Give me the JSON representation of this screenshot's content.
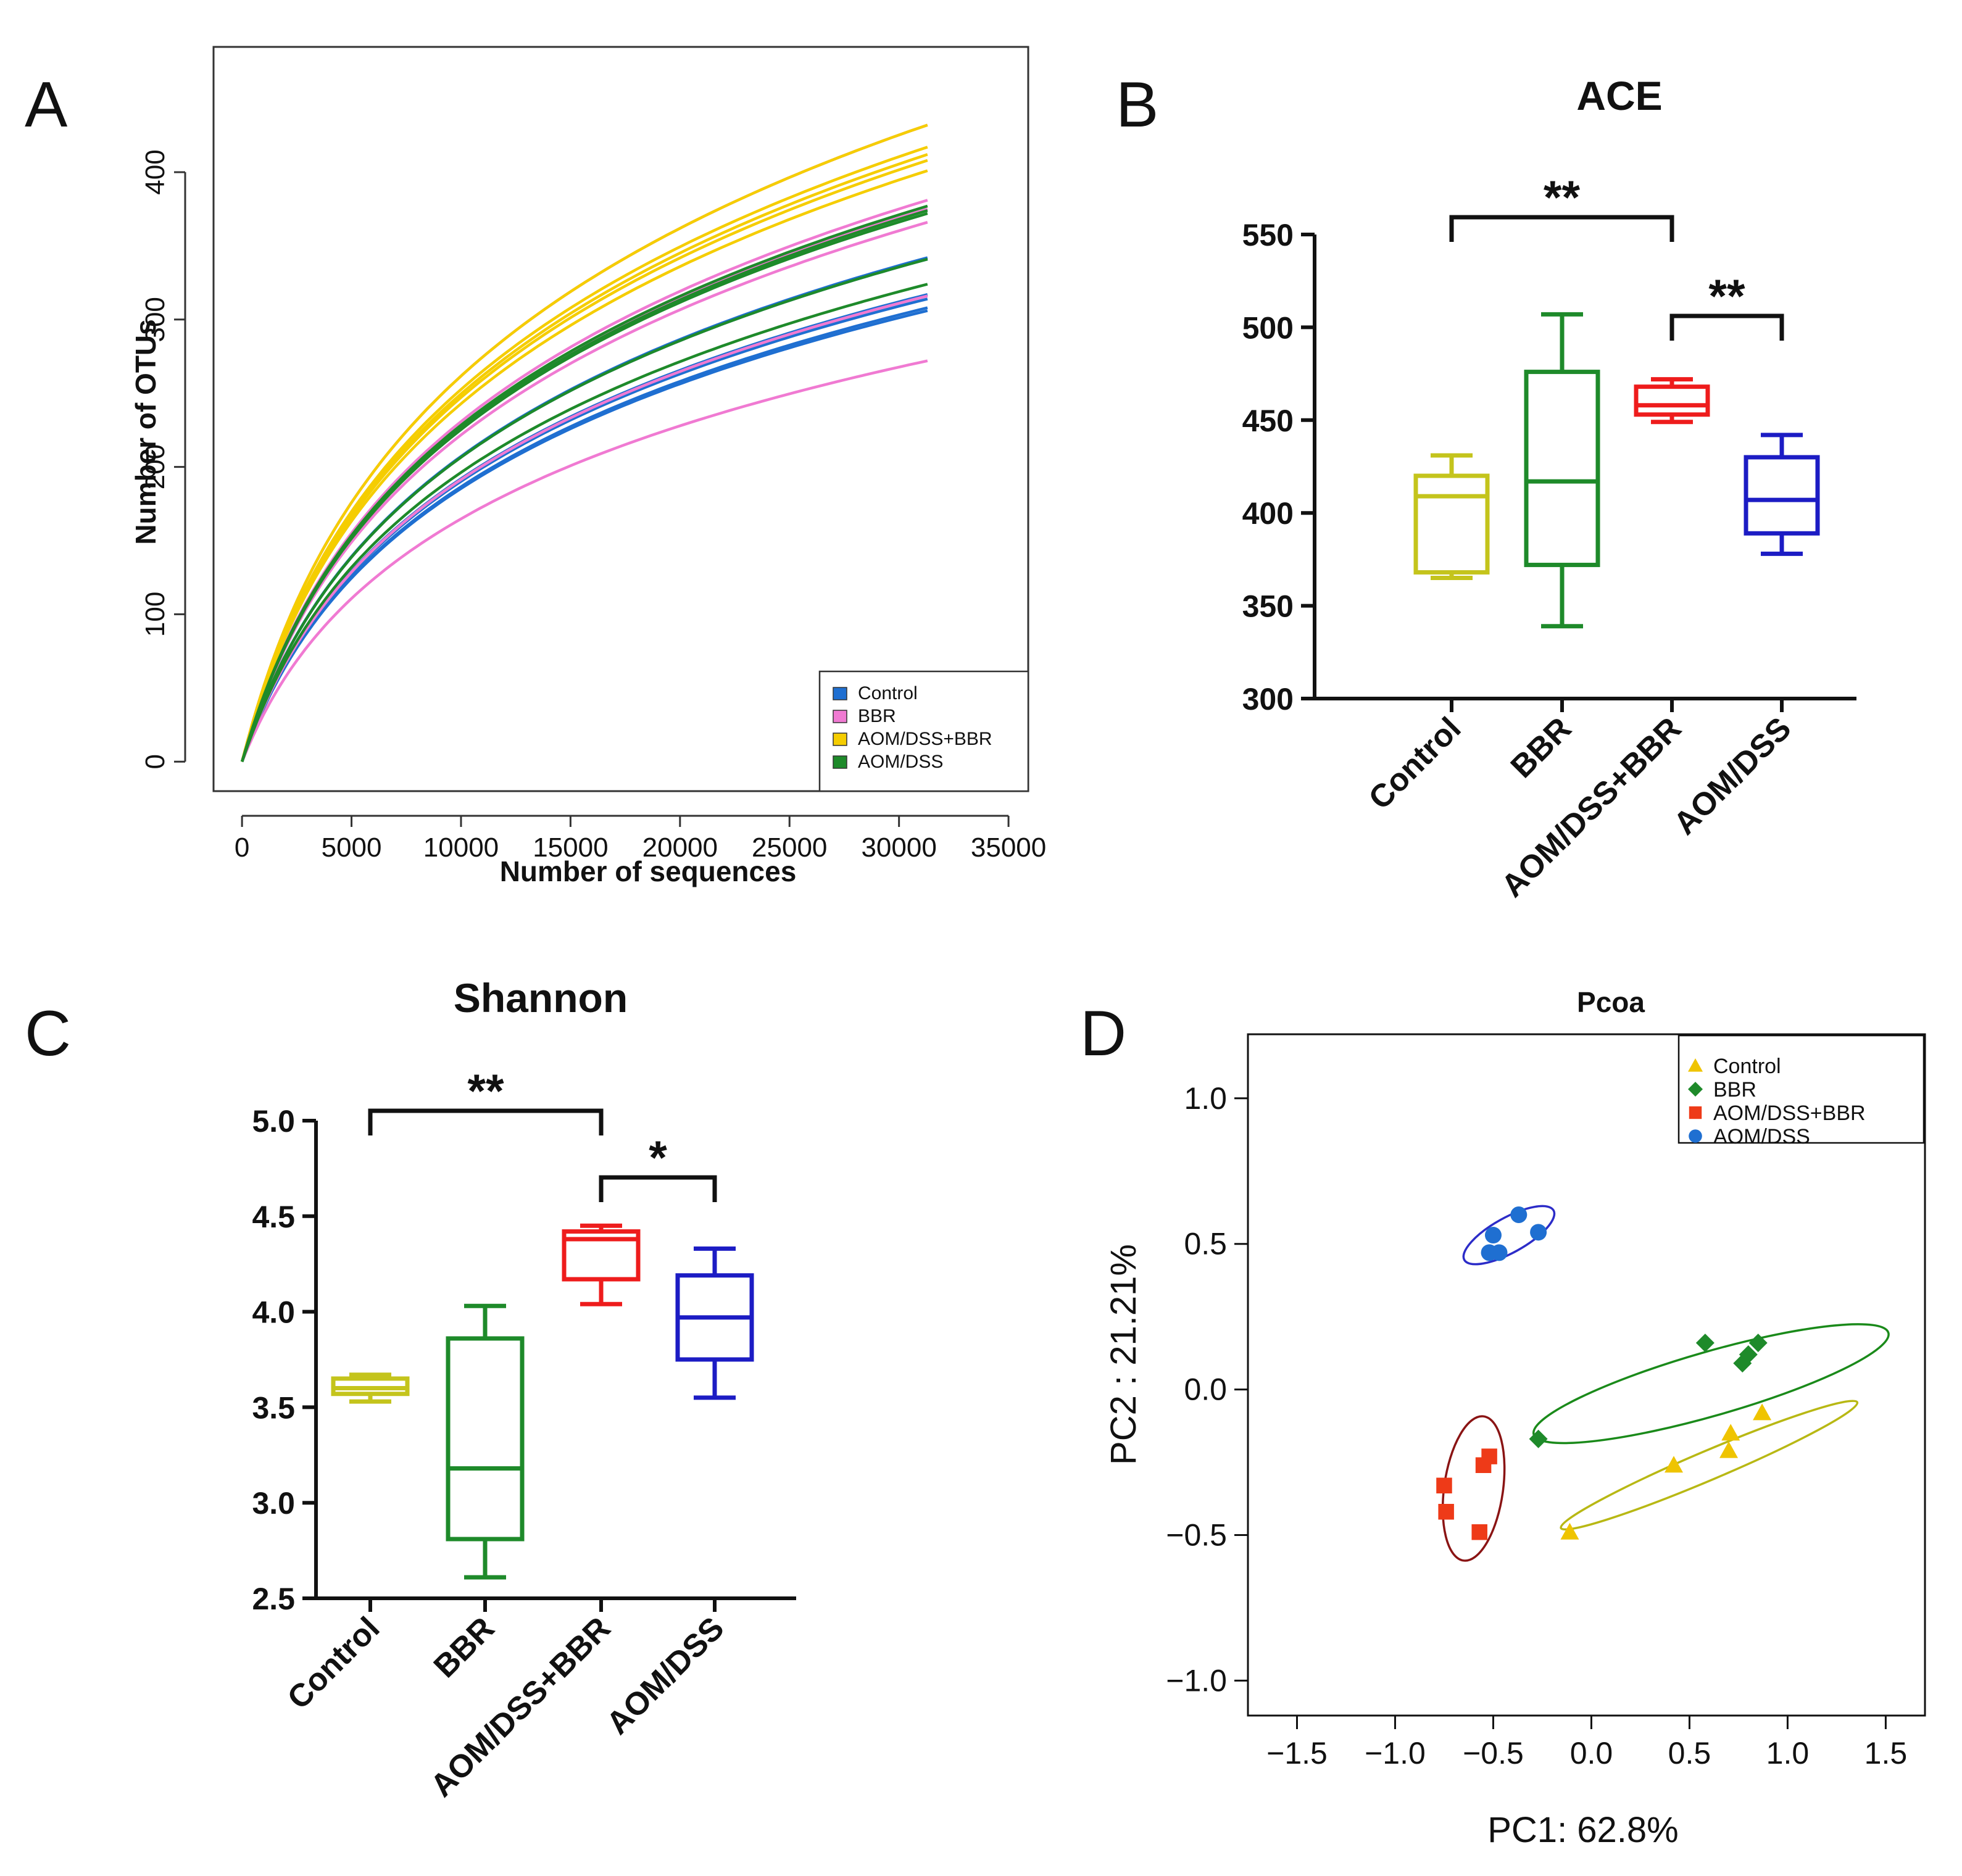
{
  "colors": {
    "control_rare": "#1f6fd1",
    "bbr_rare": "#f07ad2",
    "aombbr_rare": "#f5cd00",
    "aom_rare": "#1e8a2a",
    "control_box": "#c4c41c",
    "bbr_box": "#1e8a2a",
    "aombbr_box": "#ee1c1c",
    "aom_box": "#1c1cc4",
    "pcoa_control": "#efc400",
    "pcoa_bbr": "#1e8a2a",
    "pcoa_aombbr": "#ee3a18",
    "pcoa_aom": "#1f6fd1",
    "ellipse_control": "#b8b814",
    "ellipse_bbr": "#1a8a1a",
    "ellipse_aombbr": "#8a1414",
    "ellipse_aom": "#2c2cc8"
  },
  "chart_data": [
    {
      "panel": "A",
      "type": "line",
      "title": "",
      "xlabel": "Number of sequences",
      "ylabel": "Number of OTUs",
      "xlim": [
        -1300,
        35900
      ],
      "ylim": [
        -20,
        485
      ],
      "xticks": [
        "0",
        "5000",
        "10000",
        "15000",
        "20000",
        "25000",
        "30000",
        "35000"
      ],
      "yticks": [
        "0",
        "100",
        "200",
        "300",
        "400"
      ],
      "legend_position": "bottom-right",
      "legend": [
        "Control",
        "BBR",
        "AOM/DSS+BBR",
        "AOM/DSS"
      ],
      "x_end": 31300,
      "series": [
        {
          "name": "Control",
          "color_key": "control_rare",
          "final_values": [
            342,
            341,
            317,
            314,
            308,
            306
          ]
        },
        {
          "name": "BBR",
          "color_key": "bbr_rare",
          "final_values": [
            432,
            381,
            375,
            366,
            316,
            272
          ]
        },
        {
          "name": "AOM/DSS+BBR",
          "color_key": "aombbr_rare",
          "final_values": [
            432,
            417,
            412,
            408,
            401
          ]
        },
        {
          "name": "AOM/DSS",
          "color_key": "aom_rare",
          "final_values": [
            377,
            374,
            372,
            341,
            324
          ]
        }
      ]
    },
    {
      "panel": "B",
      "type": "box",
      "title": "ACE",
      "categories": [
        "Control",
        "BBR",
        "AOM/DSS+BBR",
        "AOM/DSS"
      ],
      "ylim": [
        300,
        550
      ],
      "yticks": [
        "300",
        "350",
        "400",
        "450",
        "500",
        "550"
      ],
      "boxes": [
        {
          "name": "Control",
          "color_key": "control_box",
          "min": 365,
          "q1": 368,
          "median": 409,
          "q3": 420,
          "max": 431
        },
        {
          "name": "BBR",
          "color_key": "bbr_box",
          "min": 339,
          "q1": 372,
          "median": 417,
          "q3": 476,
          "max": 507
        },
        {
          "name": "AOM/DSS+BBR",
          "color_key": "aombbr_box",
          "min": 449,
          "q1": 453,
          "median": 458,
          "q3": 468,
          "max": 472
        },
        {
          "name": "AOM/DSS",
          "color_key": "aom_box",
          "min": 378,
          "q1": 389,
          "median": 407,
          "q3": 430,
          "max": 442
        }
      ],
      "significance": [
        {
          "from": "Control",
          "to": "AOM/DSS+BBR",
          "label": "**"
        },
        {
          "from": "AOM/DSS+BBR",
          "to": "AOM/DSS",
          "label": "**"
        }
      ]
    },
    {
      "panel": "C",
      "type": "box",
      "title": "Shannon",
      "categories": [
        "Control",
        "BBR",
        "AOM/DSS+BBR",
        "AOM/DSS"
      ],
      "ylim": [
        2.5,
        5.0
      ],
      "yticks": [
        "2.5",
        "3.0",
        "3.5",
        "4.0",
        "4.5",
        "5.0"
      ],
      "boxes": [
        {
          "name": "Control",
          "color_key": "control_box",
          "min": 3.53,
          "q1": 3.57,
          "median": 3.6,
          "q3": 3.65,
          "max": 3.67
        },
        {
          "name": "BBR",
          "color_key": "bbr_box",
          "min": 2.61,
          "q1": 2.81,
          "median": 3.18,
          "q3": 3.86,
          "max": 4.03
        },
        {
          "name": "AOM/DSS+BBR",
          "color_key": "aombbr_box",
          "min": 4.04,
          "q1": 4.17,
          "median": 4.38,
          "q3": 4.42,
          "max": 4.45
        },
        {
          "name": "AOM/DSS",
          "color_key": "aom_box",
          "min": 3.55,
          "q1": 3.75,
          "median": 3.97,
          "q3": 4.19,
          "max": 4.33
        }
      ],
      "significance": [
        {
          "from": "Control",
          "to": "AOM/DSS+BBR",
          "label": "**"
        },
        {
          "from": "AOM/DSS+BBR",
          "to": "AOM/DSS",
          "label": "*"
        }
      ]
    },
    {
      "panel": "D",
      "type": "scatter",
      "title": "Pcoa",
      "xlabel": "PC1: 62.8%",
      "ylabel": "PC2 :  21.21%",
      "xlim": [
        -1.75,
        1.7
      ],
      "ylim": [
        -1.12,
        1.22
      ],
      "xticks": [
        {
          "value": -1.5,
          "label": "−1.5"
        },
        {
          "value": -1.0,
          "label": "−1.0"
        },
        {
          "value": -0.5,
          "label": "−0.5"
        },
        {
          "value": 0.0,
          "label": "0.0"
        },
        {
          "value": 0.5,
          "label": "0.5"
        },
        {
          "value": 1.0,
          "label": "1.0"
        },
        {
          "value": 1.5,
          "label": "1.5"
        }
      ],
      "yticks": [
        {
          "value": -1.0,
          "label": "−1.0"
        },
        {
          "value": -0.5,
          "label": "−0.5"
        },
        {
          "value": 0.0,
          "label": "0.0"
        },
        {
          "value": 0.5,
          "label": "0.5"
        },
        {
          "value": 1.0,
          "label": "1.0"
        }
      ],
      "legend_position": "top-right",
      "legend": [
        "Control",
        "BBR",
        "AOM/DSS+BBR",
        "AOM/DSS"
      ],
      "series": [
        {
          "name": "Control",
          "marker": "triangle",
          "color_key": "pcoa_control",
          "points": [
            [
              -0.11,
              -0.49
            ],
            [
              0.42,
              -0.26
            ],
            [
              0.7,
              -0.21
            ],
            [
              0.71,
              -0.15
            ],
            [
              0.87,
              -0.08
            ]
          ]
        },
        {
          "name": "BBR",
          "marker": "diamond",
          "color_key": "pcoa_bbr",
          "points": [
            [
              -0.27,
              -0.17
            ],
            [
              0.58,
              0.16
            ],
            [
              0.77,
              0.09
            ],
            [
              0.8,
              0.12
            ],
            [
              0.85,
              0.16
            ]
          ]
        },
        {
          "name": "AOM/DSS+BBR",
          "marker": "square",
          "color_key": "pcoa_aombbr",
          "points": [
            [
              -0.75,
              -0.33
            ],
            [
              -0.74,
              -0.42
            ],
            [
              -0.55,
              -0.26
            ],
            [
              -0.52,
              -0.23
            ],
            [
              -0.57,
              -0.49
            ]
          ]
        },
        {
          "name": "AOM/DSS",
          "marker": "circle",
          "color_key": "pcoa_aom",
          "points": [
            [
              -0.52,
              0.47
            ],
            [
              -0.5,
              0.53
            ],
            [
              -0.47,
              0.47
            ],
            [
              -0.37,
              0.6
            ],
            [
              -0.27,
              0.54
            ]
          ]
        }
      ],
      "ellipses": [
        {
          "name": "Control",
          "color_key": "ellipse_control",
          "cx": 0.6,
          "cy": -0.26,
          "rx": 0.82,
          "ry": 0.05,
          "angle_deg": 23
        },
        {
          "name": "BBR",
          "color_key": "ellipse_bbr",
          "cx": 0.61,
          "cy": 0.02,
          "rx": 0.94,
          "ry": 0.11,
          "angle_deg": 16
        },
        {
          "name": "AOM/DSS+BBR",
          "color_key": "ellipse_aombbr",
          "cx": -0.6,
          "cy": -0.34,
          "rx": 0.15,
          "ry": 0.25,
          "angle_deg": -8
        },
        {
          "name": "AOM/DSS",
          "color_key": "ellipse_aom",
          "cx": -0.42,
          "cy": 0.53,
          "rx": 0.26,
          "ry": 0.06,
          "angle_deg": 29
        }
      ]
    }
  ],
  "panels": {
    "A": "A",
    "B": "B",
    "C": "C",
    "D": "D"
  }
}
